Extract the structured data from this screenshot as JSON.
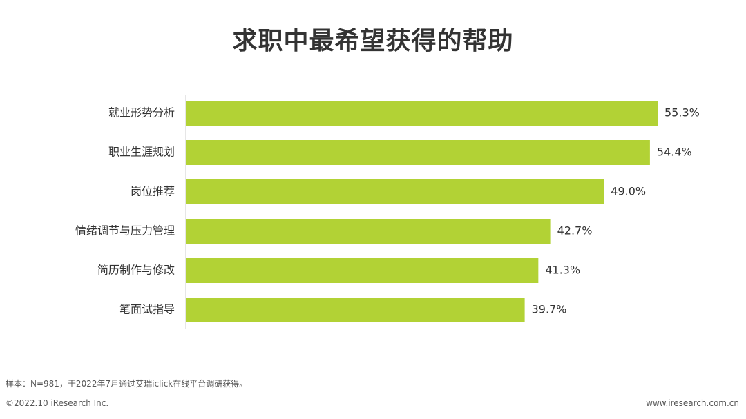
{
  "title": "求职中最希望获得的帮助",
  "chart_data": {
    "type": "bar",
    "orientation": "horizontal",
    "categories": [
      "就业形势分析",
      "职业生涯规划",
      "岗位推荐",
      "情绪调节与压力管理",
      "简历制作与修改",
      "笔面试指导"
    ],
    "values": [
      55.3,
      54.4,
      49.0,
      42.7,
      41.3,
      39.7
    ],
    "value_labels": [
      "55.3%",
      "54.4%",
      "49.0%",
      "42.7%",
      "41.3%",
      "39.7%"
    ],
    "unit": "%",
    "bar_color": "#b2d235",
    "grid": false,
    "legend": "none"
  },
  "footer": {
    "note": "样本：N=981，于2022年7月通过艾瑞iclick在线平台调研获得。",
    "copyright": "©2022.10 iResearch Inc.",
    "website": "www.iresearch.com.cn"
  },
  "colors": {
    "bar": "#b2d235",
    "text": "#333333",
    "axis": "#cccccc"
  }
}
